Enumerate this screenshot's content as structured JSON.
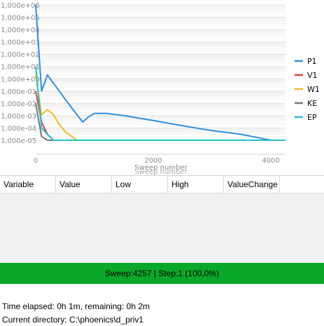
{
  "chart_data": {
    "type": "line",
    "xlabel": "Sweep number",
    "xlabel_shadow": "Sweep number",
    "xlim": [
      0,
      4250
    ],
    "x_ticks": [
      0,
      2000,
      4000
    ],
    "x_tick_labels": [
      "0",
      "2000",
      "4000"
    ],
    "y_scale": "log",
    "y_ticks": [
      "1,000e+06",
      "1,000e+05",
      "1,000e+04",
      "1,000e+03",
      "1,000e+02",
      "1,000e+01",
      "1,000e+00",
      "1,000e-01",
      "1,000e-02",
      "1,000e-03",
      "1,000e-04",
      "1,000e-05"
    ],
    "y_tick_labels": [
      "1,000e+06",
      "1,000e+05",
      "1,000e+04",
      "1,000e+03",
      "1,000e+02",
      "1,000e+01",
      "1,000e+00",
      "1,000e-01",
      "1,000e-02",
      "1,000e-03",
      "1,000e-04",
      "1,000e-05"
    ],
    "grid": true,
    "legend_position": "right",
    "series": [
      {
        "name": "P1",
        "color": "#2e8fe6",
        "points": [
          [
            0,
            1000000
          ],
          [
            100,
            0.1
          ],
          [
            200,
            2
          ],
          [
            400,
            0.1
          ],
          [
            600,
            0.005
          ],
          [
            800,
            0.0003
          ],
          [
            900,
            0.0008
          ],
          [
            1000,
            0.0015
          ],
          [
            1200,
            0.0015
          ],
          [
            1500,
            0.001
          ],
          [
            2000,
            0.0004
          ],
          [
            2500,
            0.00015
          ],
          [
            3000,
            6e-05
          ],
          [
            3500,
            3e-05
          ],
          [
            4000,
            1e-05
          ],
          [
            4200,
            4e-06
          ]
        ]
      },
      {
        "name": "V1",
        "color": "#e0403a",
        "points": [
          [
            0,
            0.1
          ],
          [
            100,
            0.0003
          ],
          [
            200,
            3e-05
          ],
          [
            300,
            1e-05
          ],
          [
            4250,
            1e-05
          ]
        ]
      },
      {
        "name": "W1",
        "color": "#f2b820",
        "points": [
          [
            0,
            2
          ],
          [
            100,
            0.0012
          ],
          [
            200,
            0.003
          ],
          [
            300,
            0.0012
          ],
          [
            400,
            0.0002
          ],
          [
            500,
            5e-05
          ],
          [
            700,
            1e-05
          ],
          [
            900,
            4e-06
          ],
          [
            1200,
            1.5e-06
          ],
          [
            1600,
            5e-07
          ],
          [
            4250,
            5e-07
          ]
        ]
      },
      {
        "name": "KE",
        "color": "#6c7a85",
        "points": [
          [
            0,
            0.01
          ],
          [
            100,
            2e-05
          ],
          [
            200,
            8e-07
          ],
          [
            300,
            5e-07
          ],
          [
            4250,
            5e-07
          ]
        ]
      },
      {
        "name": "EP",
        "color": "#22c0c8",
        "points": [
          [
            0,
            10
          ],
          [
            100,
            0.0001
          ],
          [
            200,
            3e-05
          ],
          [
            300,
            8e-06
          ],
          [
            400,
            2e-06
          ],
          [
            500,
            5e-07
          ],
          [
            4250,
            5e-07
          ]
        ]
      }
    ]
  },
  "grid": {
    "columns": [
      "Variable",
      "Value",
      "Low",
      "High",
      "ValueChange"
    ]
  },
  "status": {
    "text": "Sweep:4257 | Step:1  (100,0%)",
    "color": "#0aa82a"
  },
  "info": {
    "elapsed": "Time elapsed: 0h 1m, remaining: 0h 2m",
    "directory": "Current directory:  C:\\phoenics\\d_priv1"
  }
}
